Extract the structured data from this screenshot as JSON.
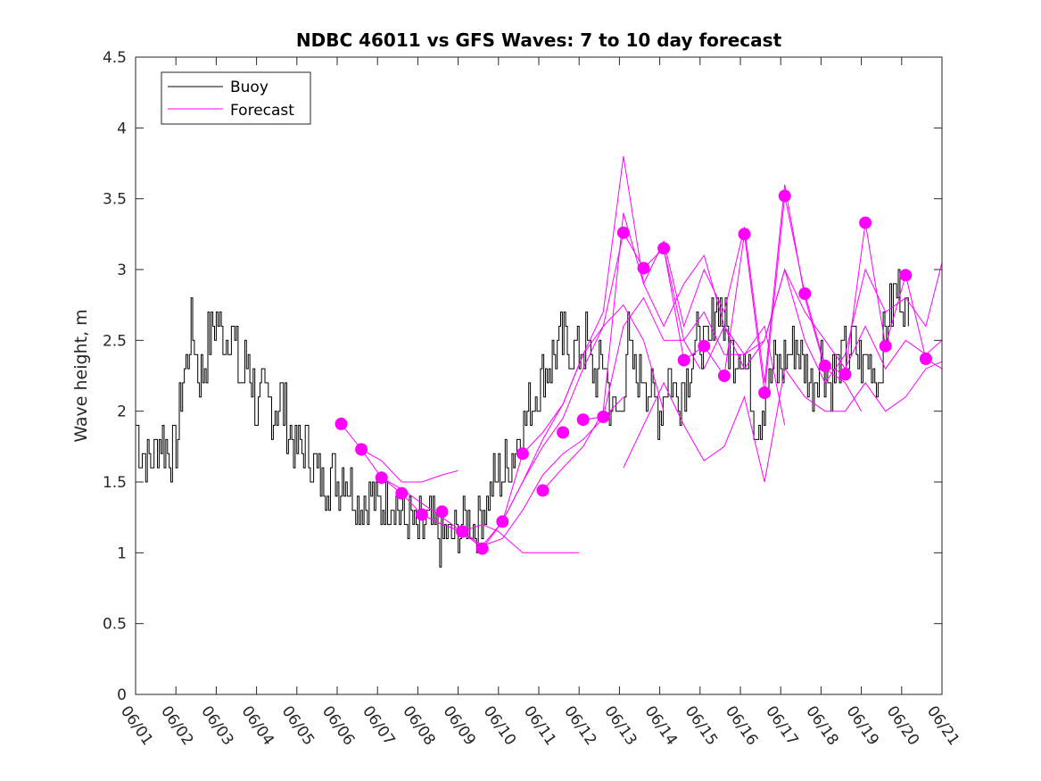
{
  "chart_data": {
    "type": "line",
    "title": "NDBC 46011 vs GFS Waves: 7 to 10 day forecast",
    "xlabel": "",
    "ylabel": "Wave height, m",
    "xlim": [
      0,
      20
    ],
    "ylim": [
      0,
      4.5
    ],
    "x_tick_labels": [
      "06/01",
      "06/02",
      "06/03",
      "06/04",
      "06/05",
      "06/06",
      "06/07",
      "06/08",
      "06/09",
      "06/10",
      "06/11",
      "06/12",
      "06/13",
      "06/14",
      "06/15",
      "06/16",
      "06/17",
      "06/18",
      "06/19",
      "06/20",
      "06/21"
    ],
    "y_ticks": [
      "0",
      "0.5",
      "1",
      "1.5",
      "2",
      "2.5",
      "3",
      "3.5",
      "4",
      "4.5"
    ],
    "legend": {
      "placement": "top-left",
      "entries": [
        "Buoy",
        "Forecast"
      ]
    },
    "colors": {
      "buoy": "#000000",
      "forecast": "#ff00ff"
    },
    "grid": false,
    "buoy_anchors": [
      [
        0.0,
        1.9
      ],
      [
        0.1,
        1.75
      ],
      [
        0.25,
        1.7
      ],
      [
        0.4,
        1.65
      ],
      [
        0.6,
        1.85
      ],
      [
        0.8,
        1.7
      ],
      [
        1.0,
        1.75
      ],
      [
        1.2,
        2.3
      ],
      [
        1.4,
        2.6
      ],
      [
        1.6,
        2.2
      ],
      [
        1.8,
        2.5
      ],
      [
        2.0,
        2.7
      ],
      [
        2.2,
        2.5
      ],
      [
        2.4,
        2.6
      ],
      [
        2.6,
        2.2
      ],
      [
        2.8,
        2.4
      ],
      [
        3.0,
        2.0
      ],
      [
        3.2,
        2.1
      ],
      [
        3.4,
        2.0
      ],
      [
        3.6,
        2.1
      ],
      [
        3.8,
        1.9
      ],
      [
        4.0,
        1.7
      ],
      [
        4.2,
        1.75
      ],
      [
        4.4,
        1.6
      ],
      [
        4.6,
        1.5
      ],
      [
        4.8,
        1.55
      ],
      [
        5.0,
        1.5
      ],
      [
        5.2,
        1.6
      ],
      [
        5.4,
        1.4
      ],
      [
        5.6,
        1.35
      ],
      [
        5.8,
        1.4
      ],
      [
        6.0,
        1.3
      ],
      [
        6.2,
        1.35
      ],
      [
        6.4,
        1.4
      ],
      [
        6.6,
        1.25
      ],
      [
        6.8,
        1.2
      ],
      [
        7.0,
        1.15
      ],
      [
        7.2,
        1.2
      ],
      [
        7.4,
        1.15
      ],
      [
        7.6,
        1.1
      ],
      [
        7.8,
        1.1
      ],
      [
        8.0,
        1.15
      ],
      [
        8.2,
        1.2
      ],
      [
        8.4,
        1.2
      ],
      [
        8.6,
        1.3
      ],
      [
        8.8,
        1.45
      ],
      [
        9.0,
        1.55
      ],
      [
        9.2,
        1.6
      ],
      [
        9.4,
        1.75
      ],
      [
        9.6,
        1.9
      ],
      [
        9.8,
        2.05
      ],
      [
        10.0,
        2.2
      ],
      [
        10.2,
        2.3
      ],
      [
        10.4,
        2.4
      ],
      [
        10.6,
        2.5
      ],
      [
        10.8,
        2.45
      ],
      [
        11.0,
        2.4
      ],
      [
        11.2,
        2.5
      ],
      [
        11.4,
        2.2
      ],
      [
        11.6,
        2.4
      ],
      [
        11.8,
        2.0
      ],
      [
        12.0,
        1.95
      ],
      [
        12.2,
        2.5
      ],
      [
        12.4,
        2.2
      ],
      [
        12.6,
        2.3
      ],
      [
        12.8,
        2.1
      ],
      [
        13.0,
        2.0
      ],
      [
        13.2,
        2.3
      ],
      [
        13.4,
        2.1
      ],
      [
        13.6,
        2.2
      ],
      [
        13.8,
        2.4
      ],
      [
        14.0,
        2.5
      ],
      [
        14.2,
        2.4
      ],
      [
        14.4,
        2.8
      ],
      [
        14.6,
        2.6
      ],
      [
        14.8,
        2.4
      ],
      [
        15.0,
        2.5
      ],
      [
        15.2,
        2.2
      ],
      [
        15.4,
        1.9
      ],
      [
        15.6,
        2.1
      ],
      [
        15.8,
        2.3
      ],
      [
        16.0,
        2.3
      ],
      [
        16.2,
        2.4
      ],
      [
        16.4,
        2.5
      ],
      [
        16.6,
        2.3
      ],
      [
        16.8,
        2.2
      ],
      [
        17.0,
        2.4
      ],
      [
        17.2,
        2.2
      ],
      [
        17.4,
        2.3
      ],
      [
        17.6,
        2.4
      ],
      [
        17.8,
        2.5
      ],
      [
        18.0,
        2.3
      ],
      [
        18.2,
        2.4
      ],
      [
        18.4,
        2.2
      ],
      [
        18.6,
        2.6
      ],
      [
        18.8,
        2.8
      ],
      [
        19.0,
        2.9
      ],
      [
        19.2,
        2.5
      ]
    ],
    "forecast_points": [
      [
        5.1,
        1.91
      ],
      [
        5.6,
        1.73
      ],
      [
        6.1,
        1.53
      ],
      [
        6.6,
        1.42
      ],
      [
        7.1,
        1.27
      ],
      [
        7.6,
        1.29
      ],
      [
        8.1,
        1.15
      ],
      [
        8.6,
        1.03
      ],
      [
        9.1,
        1.22
      ],
      [
        9.6,
        1.7
      ],
      [
        10.1,
        1.44
      ],
      [
        10.6,
        1.85
      ],
      [
        11.1,
        1.94
      ],
      [
        11.6,
        1.96
      ],
      [
        12.1,
        3.26
      ],
      [
        12.6,
        3.01
      ],
      [
        13.1,
        3.15
      ],
      [
        13.6,
        2.36
      ],
      [
        14.1,
        2.46
      ],
      [
        14.6,
        2.25
      ],
      [
        15.1,
        3.25
      ],
      [
        15.6,
        2.13
      ],
      [
        16.1,
        3.52
      ],
      [
        16.6,
        2.83
      ],
      [
        17.1,
        2.32
      ],
      [
        17.6,
        2.26
      ],
      [
        18.1,
        3.33
      ],
      [
        18.6,
        2.46
      ],
      [
        19.1,
        2.96
      ],
      [
        19.6,
        2.37
      ]
    ],
    "forecast_lines": [
      [
        [
          5.1,
          1.91
        ],
        [
          5.6,
          1.73
        ],
        [
          6.1,
          1.53
        ],
        [
          6.6,
          1.42
        ],
        [
          7.1,
          1.27
        ],
        [
          7.6,
          1.2
        ],
        [
          8.1,
          1.15
        ],
        [
          8.6,
          1.2
        ],
        [
          9.0,
          1.15
        ],
        [
          9.6,
          1.0
        ],
        [
          10.0,
          1.0
        ],
        [
          10.6,
          1.0
        ],
        [
          11.0,
          1.0
        ]
      ],
      [
        [
          5.6,
          1.73
        ],
        [
          6.1,
          1.65
        ],
        [
          6.6,
          1.5
        ],
        [
          7.1,
          1.5
        ],
        [
          7.6,
          1.55
        ],
        [
          8.0,
          1.58
        ]
      ],
      [
        [
          6.1,
          1.53
        ],
        [
          6.6,
          1.45
        ],
        [
          7.1,
          1.35
        ],
        [
          7.6,
          1.25
        ],
        [
          8.1,
          1.15
        ],
        [
          8.6,
          1.05
        ],
        [
          9.1,
          1.1
        ],
        [
          9.6,
          1.3
        ],
        [
          10.1,
          1.55
        ],
        [
          10.6,
          1.7
        ],
        [
          11.1,
          1.8
        ],
        [
          11.6,
          1.95
        ],
        [
          12.1,
          2.1
        ]
      ],
      [
        [
          7.1,
          1.27
        ],
        [
          7.6,
          1.2
        ],
        [
          8.1,
          1.15
        ],
        [
          8.6,
          1.05
        ],
        [
          9.1,
          1.22
        ],
        [
          9.6,
          1.5
        ],
        [
          10.1,
          1.75
        ],
        [
          10.6,
          1.95
        ],
        [
          11.1,
          2.3
        ],
        [
          11.6,
          2.6
        ],
        [
          12.1,
          2.75
        ],
        [
          12.6,
          2.5
        ],
        [
          13.1,
          2.0
        ]
      ],
      [
        [
          8.1,
          1.15
        ],
        [
          8.6,
          1.03
        ],
        [
          9.1,
          1.22
        ],
        [
          9.6,
          1.5
        ],
        [
          10.1,
          1.8
        ],
        [
          10.6,
          2.05
        ],
        [
          11.1,
          2.4
        ],
        [
          11.6,
          2.6
        ],
        [
          12.1,
          3.26
        ],
        [
          12.6,
          3.01
        ],
        [
          13.1,
          3.15
        ],
        [
          13.6,
          2.5
        ],
        [
          14.0,
          2.3
        ]
      ],
      [
        [
          9.1,
          1.22
        ],
        [
          9.6,
          1.7
        ],
        [
          10.1,
          1.85
        ],
        [
          10.6,
          2.05
        ],
        [
          11.1,
          2.4
        ],
        [
          11.6,
          2.7
        ],
        [
          12.1,
          3.8
        ],
        [
          12.6,
          2.9
        ],
        [
          13.1,
          2.6
        ],
        [
          13.6,
          2.9
        ],
        [
          14.1,
          3.1
        ],
        [
          14.6,
          2.6
        ],
        [
          15.1,
          2.4
        ],
        [
          15.6,
          2.6
        ],
        [
          16.1,
          1.9
        ]
      ],
      [
        [
          10.1,
          1.44
        ],
        [
          10.6,
          1.6
        ],
        [
          11.1,
          1.75
        ],
        [
          11.6,
          2.0
        ],
        [
          12.1,
          3.4
        ],
        [
          12.6,
          2.9
        ],
        [
          13.1,
          3.2
        ],
        [
          13.6,
          2.6
        ],
        [
          14.1,
          3.0
        ],
        [
          14.6,
          2.7
        ],
        [
          15.1,
          3.3
        ],
        [
          15.6,
          2.2
        ],
        [
          16.1,
          3.6
        ],
        [
          16.6,
          2.8
        ],
        [
          17.1,
          2.3
        ],
        [
          17.6,
          2.2
        ],
        [
          18.0,
          2.0
        ]
      ],
      [
        [
          11.1,
          1.94
        ],
        [
          11.6,
          1.96
        ],
        [
          12.1,
          2.6
        ],
        [
          12.6,
          2.8
        ],
        [
          13.1,
          2.5
        ],
        [
          13.6,
          2.5
        ],
        [
          14.1,
          2.7
        ],
        [
          14.6,
          2.4
        ],
        [
          15.1,
          2.4
        ],
        [
          15.6,
          2.5
        ],
        [
          16.1,
          3.0
        ],
        [
          16.6,
          2.7
        ],
        [
          17.1,
          2.5
        ],
        [
          17.6,
          2.3
        ],
        [
          18.1,
          2.6
        ],
        [
          18.6,
          2.3
        ],
        [
          19.1,
          2.5
        ],
        [
          19.6,
          2.4
        ],
        [
          20.0,
          2.5
        ]
      ],
      [
        [
          12.1,
          1.6
        ],
        [
          12.6,
          1.9
        ],
        [
          13.1,
          2.2
        ],
        [
          13.6,
          1.9
        ],
        [
          14.1,
          1.65
        ],
        [
          14.6,
          1.75
        ],
        [
          15.1,
          2.1
        ],
        [
          15.6,
          1.5
        ],
        [
          16.1,
          2.3
        ],
        [
          16.6,
          2.1
        ],
        [
          17.1,
          2.0
        ],
        [
          17.6,
          2.0
        ],
        [
          18.1,
          2.2
        ],
        [
          18.6,
          2.0
        ],
        [
          19.1,
          2.1
        ],
        [
          19.6,
          2.3
        ],
        [
          20.0,
          2.35
        ]
      ],
      [
        [
          13.1,
          3.15
        ],
        [
          13.6,
          2.36
        ],
        [
          14.1,
          2.46
        ],
        [
          14.6,
          2.25
        ],
        [
          15.1,
          3.25
        ],
        [
          15.6,
          2.13
        ],
        [
          16.1,
          3.52
        ],
        [
          16.6,
          2.83
        ],
        [
          17.1,
          2.32
        ],
        [
          17.6,
          2.26
        ],
        [
          18.1,
          3.33
        ],
        [
          18.6,
          2.46
        ],
        [
          19.1,
          2.96
        ],
        [
          19.6,
          2.37
        ],
        [
          20.0,
          2.3
        ]
      ],
      [
        [
          14.1,
          2.3
        ],
        [
          14.6,
          2.6
        ],
        [
          15.1,
          2.3
        ],
        [
          15.6,
          2.5
        ],
        [
          16.1,
          3.0
        ],
        [
          16.6,
          2.5
        ],
        [
          17.1,
          2.2
        ],
        [
          17.6,
          2.4
        ],
        [
          18.1,
          3.0
        ],
        [
          18.6,
          2.7
        ],
        [
          19.1,
          2.8
        ],
        [
          19.6,
          2.6
        ],
        [
          20.0,
          3.05
        ]
      ]
    ]
  }
}
